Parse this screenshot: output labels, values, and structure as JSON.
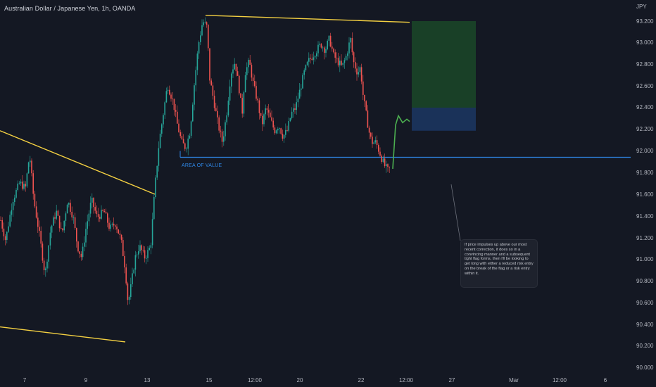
{
  "header": {
    "symbol_title": "Australian Dollar / Japanese Yen, 1h, OANDA"
  },
  "annotations": {
    "zone_label": "AREA OF VALUE",
    "callout_text": "If price impulses up above our most recent correction, it does so in a convincing manner and a subsequent tight flag forms, then I'll be looking to get long with either a reduced risk entry on the break of the flag or a risk entry within it."
  },
  "colors": {
    "background": "#141823",
    "up_candle": "#26a69a",
    "down_candle": "#ef5350",
    "trendline": "#f5d142",
    "support_line": "#2f88e8",
    "projection": "#4caf50",
    "target_zone": "#1b4d2a",
    "stop_zone": "#1c3a66",
    "axis_text": "#b2b5be"
  },
  "chart_data": {
    "type": "candlestick",
    "title": "Australian Dollar / Japanese Yen, 1h, OANDA",
    "currency_label": "JPY",
    "y_ticks": [
      "93.200",
      "93.000",
      "92.800",
      "92.600",
      "92.400",
      "92.200",
      "92.000",
      "91.800",
      "91.600",
      "91.400",
      "91.200",
      "91.000",
      "90.800",
      "90.600",
      "90.400",
      "90.200",
      "90.000"
    ],
    "x_ticks": [
      "7",
      "9",
      "13",
      "15",
      "12:00",
      "20",
      "22",
      "12:00",
      "27",
      "Mar",
      "12:00",
      "6"
    ],
    "ylim": [
      90.0,
      93.3
    ],
    "price_path": [
      [
        0,
        91.3
      ],
      [
        8,
        91.1
      ],
      [
        18,
        91.45
      ],
      [
        28,
        91.6
      ],
      [
        36,
        91.55
      ],
      [
        42,
        91.85
      ],
      [
        48,
        91.45
      ],
      [
        56,
        91.15
      ],
      [
        64,
        90.8
      ],
      [
        72,
        91.2
      ],
      [
        80,
        91.35
      ],
      [
        88,
        91.15
      ],
      [
        96,
        91.45
      ],
      [
        104,
        91.3
      ],
      [
        110,
        91.05
      ],
      [
        116,
        90.95
      ],
      [
        122,
        91.2
      ],
      [
        130,
        91.45
      ],
      [
        138,
        91.3
      ],
      [
        148,
        91.35
      ],
      [
        156,
        91.2
      ],
      [
        164,
        91.25
      ],
      [
        172,
        91.1
      ],
      [
        178,
        90.85
      ],
      [
        182,
        90.55
      ],
      [
        186,
        90.7
      ],
      [
        192,
        90.95
      ],
      [
        198,
        91.05
      ],
      [
        206,
        90.95
      ],
      [
        214,
        91.05
      ],
      [
        220,
        91.55
      ],
      [
        226,
        91.95
      ],
      [
        232,
        92.2
      ],
      [
        238,
        92.45
      ],
      [
        246,
        92.3
      ],
      [
        252,
        92.1
      ],
      [
        258,
        91.95
      ],
      [
        264,
        91.9
      ],
      [
        270,
        92.05
      ],
      [
        276,
        92.45
      ],
      [
        282,
        92.8
      ],
      [
        288,
        93.0
      ],
      [
        294,
        92.95
      ],
      [
        298,
        92.5
      ],
      [
        304,
        92.3
      ],
      [
        310,
        92.1
      ],
      [
        316,
        91.95
      ],
      [
        322,
        92.2
      ],
      [
        328,
        92.55
      ],
      [
        334,
        92.65
      ],
      [
        340,
        92.4
      ],
      [
        344,
        92.2
      ],
      [
        348,
        92.55
      ],
      [
        354,
        92.65
      ],
      [
        360,
        92.45
      ],
      [
        366,
        92.3
      ],
      [
        372,
        92.1
      ],
      [
        378,
        92.25
      ],
      [
        384,
        92.15
      ],
      [
        390,
        92.05
      ],
      [
        396,
        92.1
      ],
      [
        402,
        92.0
      ],
      [
        408,
        92.05
      ],
      [
        414,
        92.2
      ],
      [
        420,
        92.25
      ],
      [
        426,
        92.4
      ],
      [
        432,
        92.55
      ],
      [
        438,
        92.65
      ],
      [
        444,
        92.7
      ],
      [
        450,
        92.75
      ],
      [
        456,
        92.8
      ],
      [
        462,
        92.75
      ],
      [
        468,
        92.85
      ],
      [
        474,
        92.7
      ],
      [
        480,
        92.65
      ],
      [
        486,
        92.6
      ],
      [
        492,
        92.7
      ],
      [
        498,
        92.85
      ],
      [
        502,
        92.65
      ],
      [
        508,
        92.55
      ],
      [
        512,
        92.6
      ],
      [
        516,
        92.35
      ],
      [
        520,
        92.2
      ],
      [
        524,
        92.05
      ],
      [
        528,
        91.95
      ],
      [
        534,
        91.95
      ],
      [
        540,
        91.85
      ],
      [
        546,
        91.75
      ],
      [
        552,
        91.7
      ],
      [
        556,
        91.78
      ]
    ],
    "projection_path": [
      [
        558,
        91.72
      ],
      [
        562,
        92.1
      ],
      [
        566,
        92.18
      ],
      [
        572,
        92.12
      ],
      [
        578,
        92.15
      ],
      [
        582,
        92.13
      ]
    ],
    "trendlines": [
      {
        "from": [
          0,
          92.05
        ],
        "to": [
          220,
          91.5
        ]
      },
      {
        "from": [
          0,
          90.35
        ],
        "to": [
          178,
          90.22
        ]
      },
      {
        "from": [
          292,
          93.05
        ],
        "to": [
          582,
          92.99
        ]
      }
    ],
    "support_level": 91.82,
    "target_zone": {
      "price_top": 93.0,
      "price_bottom": 92.25
    },
    "stop_zone": {
      "price_top": 92.25,
      "price_bottom": 92.05
    }
  }
}
